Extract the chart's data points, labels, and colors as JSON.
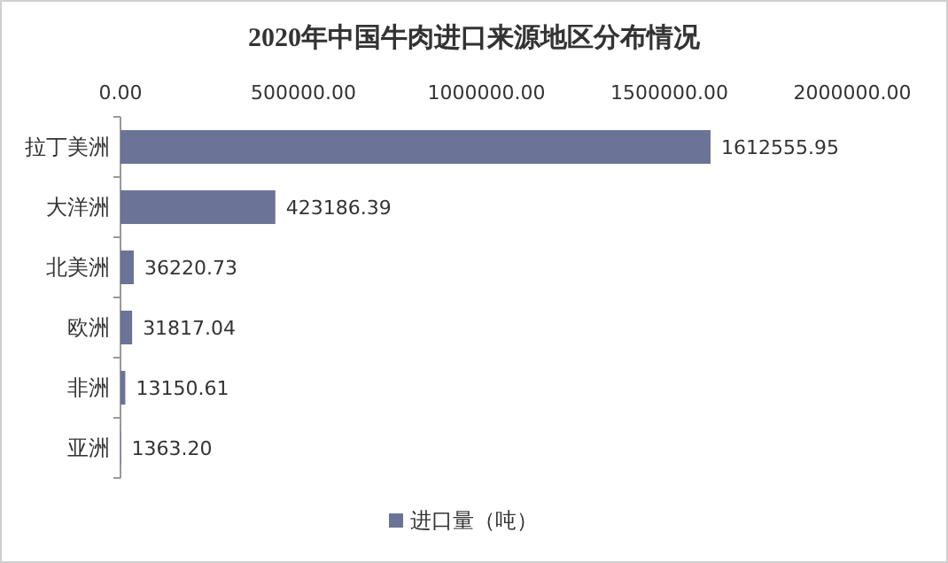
{
  "chart_data": {
    "type": "bar",
    "orientation": "horizontal",
    "title": "2020年中国牛肉进口来源地区分布情况",
    "categories": [
      "拉丁美洲",
      "大洋洲",
      "北美洲",
      "欧洲",
      "非洲",
      "亚洲"
    ],
    "series": [
      {
        "name": "进口量（吨）",
        "color": "#6b7496",
        "values": [
          1612555.95,
          423186.39,
          36220.73,
          31817.04,
          13150.61,
          1363.2
        ],
        "value_labels": [
          "1612555.95",
          "423186.39",
          "36220.73",
          "31817.04",
          "13150.61",
          "1363.20"
        ]
      }
    ],
    "xlim": [
      0,
      2000000
    ],
    "xticks": [
      {
        "value": 0,
        "label": "0.00"
      },
      {
        "value": 500000,
        "label": "500000.00"
      },
      {
        "value": 1000000,
        "label": "1000000.00"
      },
      {
        "value": 1500000,
        "label": "1500000.00"
      },
      {
        "value": 2000000,
        "label": "2000000.00"
      }
    ],
    "legend": "bottom"
  }
}
